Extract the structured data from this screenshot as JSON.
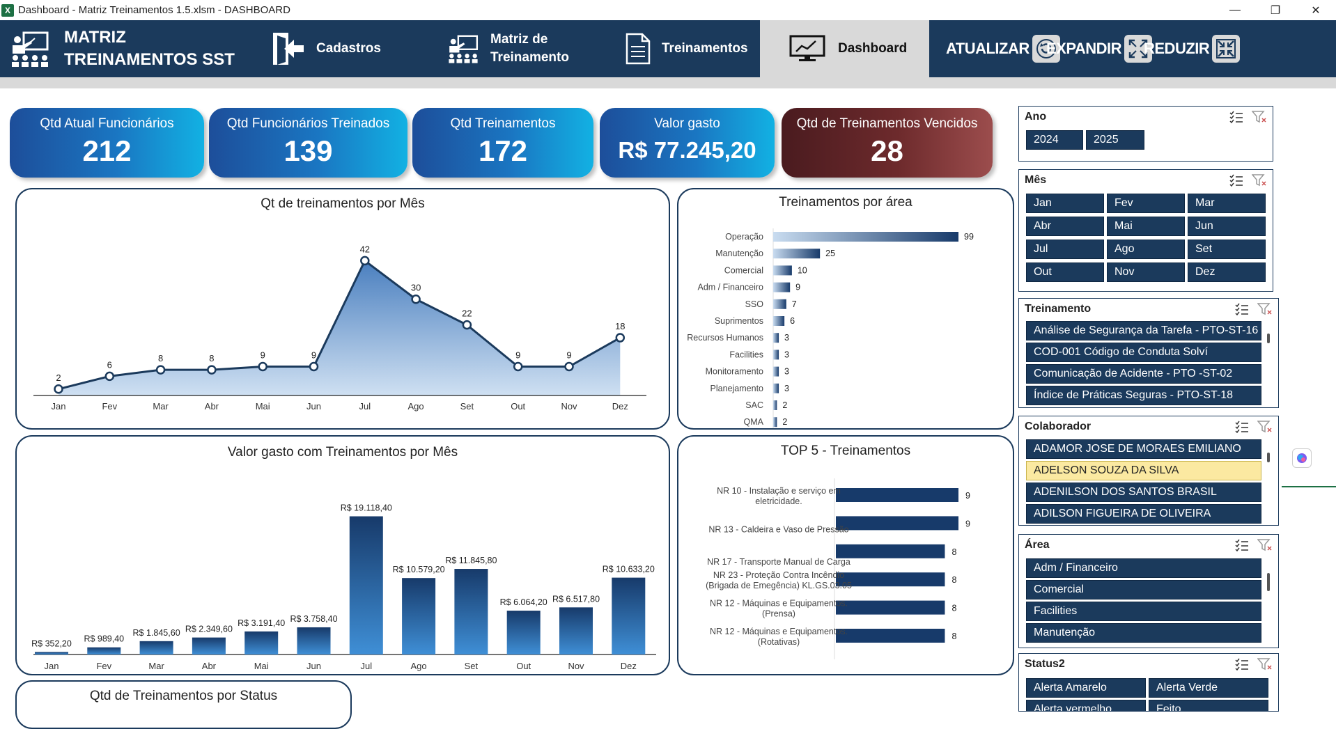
{
  "window": {
    "title": "Dashboard - Matriz Treinamentos 1.5.xlsm - DASHBOARD",
    "app_icon": "X"
  },
  "header": {
    "brand_line1": "MATRIZ",
    "brand_line2": "TREINAMENTOS SST",
    "nav": {
      "cadastros": "Cadastros",
      "matriz_line1": "Matriz de",
      "matriz_line2": "Treinamento",
      "treinamentos": "Treinamentos",
      "dashboard": "Dashboard"
    },
    "actions": {
      "atualizar": "ATUALIZAR",
      "expandir": "EXPANDIR",
      "reduzir": "REDUZIR"
    }
  },
  "kpis": {
    "funcionarios": {
      "label": "Qtd Atual Funcionários",
      "value": "212"
    },
    "treinados": {
      "label": "Qtd Funcionários Treinados",
      "value": "139"
    },
    "treinamentos": {
      "label": "Qtd  Treinamentos",
      "value": "172"
    },
    "valor": {
      "label": "Valor gasto",
      "value": "R$ 77.245,20"
    },
    "vencidos": {
      "label": "Qtd de Treinamentos Vencidos",
      "value": "28"
    }
  },
  "charts": {
    "por_mes_title": "Qt de treinamentos por Mês",
    "por_area_title": "Treinamentos por área",
    "valor_title": "Valor gasto com Treinamentos por Mês",
    "top5_title": "TOP 5 - Treinamentos",
    "status_title": "Qtd de Treinamentos por Status"
  },
  "chart_data": [
    {
      "type": "area",
      "title": "Qt de treinamentos por Mês",
      "categories": [
        "Jan",
        "Fev",
        "Mar",
        "Abr",
        "Mai",
        "Jun",
        "Jul",
        "Ago",
        "Set",
        "Out",
        "Nov",
        "Dez"
      ],
      "values": [
        2,
        6,
        8,
        8,
        9,
        9,
        42,
        30,
        22,
        9,
        9,
        18
      ],
      "ylim": [
        0,
        46
      ]
    },
    {
      "type": "bar",
      "title": "Treinamentos por área",
      "orientation": "horizontal",
      "categories": [
        "Operação",
        "Manutenção",
        "Comercial",
        "Adm / Financeiro",
        "SSO",
        "Suprimentos",
        "Recursos Humanos",
        "Facilities",
        "Monitoramento",
        "Planejamento",
        "SAC",
        "QMA"
      ],
      "values": [
        99,
        25,
        10,
        9,
        7,
        6,
        3,
        3,
        3,
        3,
        2,
        2
      ]
    },
    {
      "type": "bar",
      "title": "Valor gasto com Treinamentos por Mês",
      "categories": [
        "Jan",
        "Fev",
        "Mar",
        "Abr",
        "Mai",
        "Jun",
        "Jul",
        "Ago",
        "Set",
        "Out",
        "Nov",
        "Dez"
      ],
      "values": [
        352.2,
        989.4,
        1845.6,
        2349.6,
        3191.4,
        3758.4,
        19118.4,
        10579.2,
        11845.8,
        6064.2,
        6517.8,
        10633.2
      ],
      "labels": [
        "R$ 352,20",
        "R$ 989,40",
        "R$ 1.845,60",
        "R$ 2.349,60",
        "R$ 3.191,40",
        "R$ 3.758,40",
        "R$ 19.118,40",
        "R$ 10.579,20",
        "R$ 11.845,80",
        "R$ 6.064,20",
        "R$ 6.517,80",
        "R$ 10.633,20"
      ],
      "ylim": [
        0,
        21000
      ]
    },
    {
      "type": "bar",
      "title": "TOP 5 - Treinamentos",
      "orientation": "horizontal",
      "categories": [
        [
          "NR 10 - Instalação e serviço em",
          "eletricidade."
        ],
        [
          "",
          "NR 13 - Caldeira e Vaso de Pressão"
        ],
        [
          "NR 17 - Transporte Manual de Carga"
        ],
        [
          "NR 23 - Proteção Contra Incêndio",
          "(Brigada de Emegência) KL.GS.03.05"
        ],
        [
          "NR 12 - Máquinas e Equipamentos.",
          "(Prensa)"
        ],
        [
          "NR 12 - Máquinas e Equipamentos.",
          "(Rotativas)"
        ]
      ],
      "values": [
        9,
        9,
        8,
        8,
        8,
        8
      ]
    }
  ],
  "slicers": {
    "ano": {
      "title": "Ano",
      "items": [
        "2024",
        "2025"
      ]
    },
    "mes": {
      "title": "Mês",
      "items": [
        "Jan",
        "Fev",
        "Mar",
        "Abr",
        "Mai",
        "Jun",
        "Jul",
        "Ago",
        "Set",
        "Out",
        "Nov",
        "Dez"
      ]
    },
    "treinamento": {
      "title": "Treinamento",
      "items": [
        "Análise de Segurança da Tarefa - PTO-ST-16",
        "COD-001 Código de Conduta Solví",
        "Comunicação de Acidente - PTO -ST-02",
        "Índice de Práticas Seguras - PTO-ST-18"
      ]
    },
    "colaborador": {
      "title": "Colaborador",
      "items": [
        "ADAMOR JOSE DE MORAES EMILIANO",
        "ADELSON SOUZA DA SILVA",
        "ADENILSON DOS SANTOS BRASIL",
        "ADILSON FIGUEIRA DE OLIVEIRA"
      ],
      "selected_index": 1
    },
    "area": {
      "title": "Área",
      "items": [
        "Adm / Financeiro",
        "Comercial",
        "Facilities",
        "Manutenção"
      ]
    },
    "status": {
      "title": "Status2",
      "items": [
        "Alerta Amarelo",
        "Alerta Verde",
        "Alerta vermelho",
        "Feito"
      ]
    }
  },
  "colors": {
    "navy": "#1b3a5c",
    "bar_dark": "#173a6a",
    "selected": "#fbe9a1"
  }
}
